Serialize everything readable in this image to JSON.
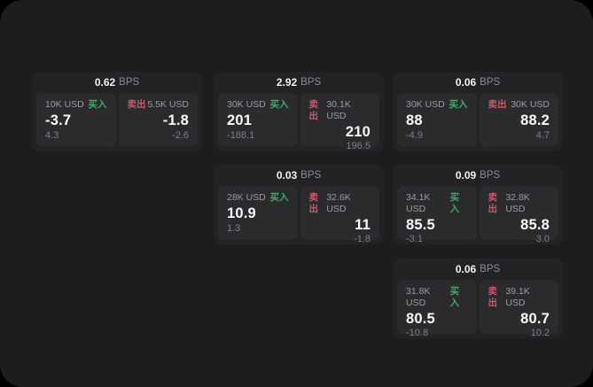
{
  "labels": {
    "bps_suffix": "BPS",
    "buy": "买入",
    "sell": "卖出"
  },
  "colors": {
    "page_bg": "#000000",
    "panel_bg": "#1d1d1f",
    "card_bg": "#232326",
    "tile_bg": "#2b2b2e",
    "buy_green": "#45a866",
    "sell_red": "#c9596b"
  },
  "cards": [
    {
      "bps": "0.62",
      "buy": {
        "amount": "10K USD",
        "price": "-3.7",
        "change": "4.3"
      },
      "sell": {
        "amount": "5.5K USD",
        "price": "-1.8",
        "change": "-2.6"
      }
    },
    {
      "bps": "2.92",
      "buy": {
        "amount": "30K USD",
        "price": "201",
        "change": "-188.1"
      },
      "sell": {
        "amount": "30.1K USD",
        "price": "210",
        "change": "196.5"
      }
    },
    {
      "bps": "0.06",
      "buy": {
        "amount": "30K USD",
        "price": "88",
        "change": "-4.9"
      },
      "sell": {
        "amount": "30K USD",
        "price": "88.2",
        "change": "4.7"
      }
    },
    {
      "bps": "0.03",
      "buy": {
        "amount": "28K USD",
        "price": "10.9",
        "change": "1.3"
      },
      "sell": {
        "amount": "32.6K USD",
        "price": "11",
        "change": "-1.8"
      }
    },
    {
      "bps": "0.09",
      "buy": {
        "amount": "34.1K USD",
        "price": "85.5",
        "change": "-3.1"
      },
      "sell": {
        "amount": "32.8K USD",
        "price": "85.8",
        "change": "3.0"
      }
    },
    {
      "bps": "0.06",
      "buy": {
        "amount": "31.8K USD",
        "price": "80.5",
        "change": "-10.8"
      },
      "sell": {
        "amount": "39.1K USD",
        "price": "80.7",
        "change": "10.2"
      }
    }
  ]
}
